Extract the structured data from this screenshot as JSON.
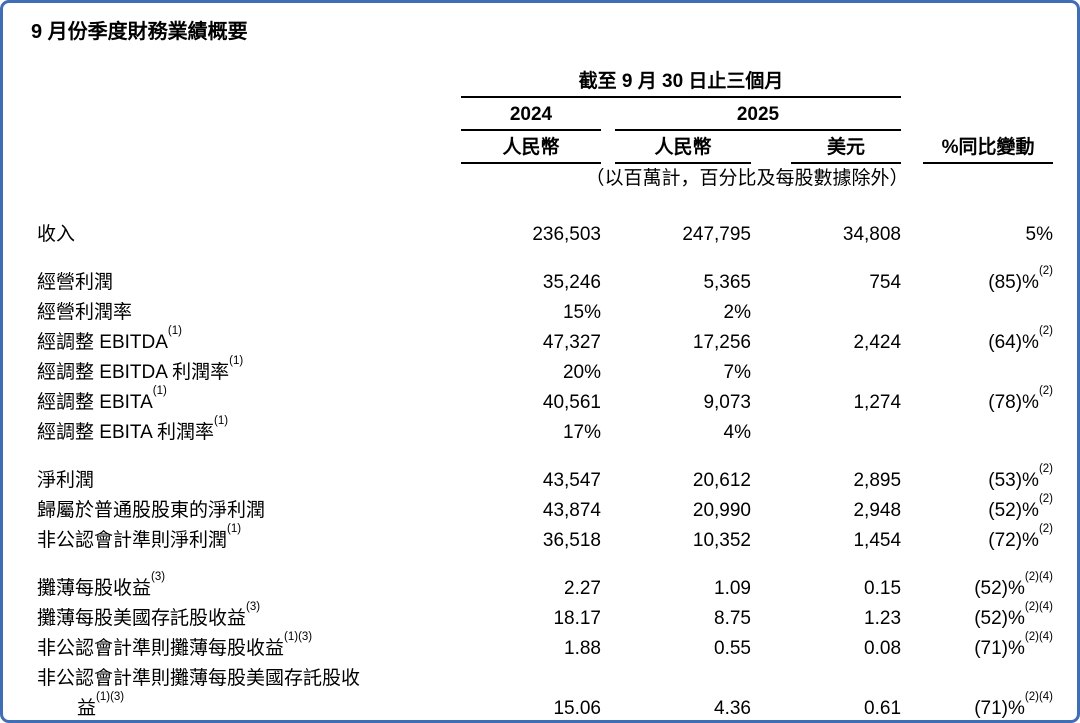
{
  "page": {
    "title": "9 月份季度財務業績概要"
  },
  "colors": {
    "frame_border": "#3f6eb5",
    "rule_line": "#000000",
    "text": "#000000",
    "background": "#ffffff"
  },
  "table": {
    "period_header": "截至 9 月 30 日止三個月",
    "column_groups": {
      "year_2024": "2024",
      "year_2025": "2025"
    },
    "columns": {
      "rmb_2024": "人民幣",
      "rmb_2025": "人民幣",
      "usd_2025": "美元",
      "yoy_change": "%同比變動"
    },
    "units_note": "（以百萬計，百分比及每股數據除外）",
    "rows": [
      {
        "label": "收入",
        "label_line2": "",
        "sup": "",
        "rmb_2024": "236,503",
        "rmb_2025": "247,795",
        "usd_2025": "34,808",
        "yoy": "5%",
        "yoy_sup": "",
        "gap_before": false
      },
      {
        "label": "經營利潤",
        "label_line2": "",
        "sup": "",
        "rmb_2024": "35,246",
        "rmb_2025": "5,365",
        "usd_2025": "754",
        "yoy": "(85)%",
        "yoy_sup": "(2)",
        "gap_before": true
      },
      {
        "label": "經營利潤率",
        "label_line2": "",
        "sup": "",
        "rmb_2024": "15%",
        "rmb_2025": "2%",
        "usd_2025": "",
        "yoy": "",
        "yoy_sup": "",
        "gap_before": false
      },
      {
        "label": "經調整 EBITDA",
        "label_line2": "",
        "sup": "(1)",
        "rmb_2024": "47,327",
        "rmb_2025": "17,256",
        "usd_2025": "2,424",
        "yoy": "(64)%",
        "yoy_sup": "(2)",
        "gap_before": false
      },
      {
        "label": "經調整 EBITDA 利潤率",
        "label_line2": "",
        "sup": "(1)",
        "rmb_2024": "20%",
        "rmb_2025": "7%",
        "usd_2025": "",
        "yoy": "",
        "yoy_sup": "",
        "gap_before": false
      },
      {
        "label": "經調整 EBITA",
        "label_line2": "",
        "sup": "(1)",
        "rmb_2024": "40,561",
        "rmb_2025": "9,073",
        "usd_2025": "1,274",
        "yoy": "(78)%",
        "yoy_sup": "(2)",
        "gap_before": false
      },
      {
        "label": "經調整 EBITA 利潤率",
        "label_line2": "",
        "sup": "(1)",
        "rmb_2024": "17%",
        "rmb_2025": "4%",
        "usd_2025": "",
        "yoy": "",
        "yoy_sup": "",
        "gap_before": false
      },
      {
        "label": "淨利潤",
        "label_line2": "",
        "sup": "",
        "rmb_2024": "43,547",
        "rmb_2025": "20,612",
        "usd_2025": "2,895",
        "yoy": "(53)%",
        "yoy_sup": "(2)",
        "gap_before": true
      },
      {
        "label": "歸屬於普通股股東的淨利潤",
        "label_line2": "",
        "sup": "",
        "rmb_2024": "43,874",
        "rmb_2025": "20,990",
        "usd_2025": "2,948",
        "yoy": "(52)%",
        "yoy_sup": "(2)",
        "gap_before": false
      },
      {
        "label": "非公認會計準則淨利潤",
        "label_line2": "",
        "sup": "(1)",
        "rmb_2024": "36,518",
        "rmb_2025": "10,352",
        "usd_2025": "1,454",
        "yoy": "(72)%",
        "yoy_sup": "(2)",
        "gap_before": false
      },
      {
        "label": "攤薄每股收益",
        "label_line2": "",
        "sup": "(3)",
        "rmb_2024": "2.27",
        "rmb_2025": "1.09",
        "usd_2025": "0.15",
        "yoy": "(52)%",
        "yoy_sup": "(2)(4)",
        "gap_before": true
      },
      {
        "label": "攤薄每股美國存託股收益",
        "label_line2": "",
        "sup": "(3)",
        "rmb_2024": "18.17",
        "rmb_2025": "8.75",
        "usd_2025": "1.23",
        "yoy": "(52)%",
        "yoy_sup": "(2)(4)",
        "gap_before": false
      },
      {
        "label": "非公認會計準則攤薄每股收益",
        "label_line2": "",
        "sup": "(1)(3)",
        "rmb_2024": "1.88",
        "rmb_2025": "0.55",
        "usd_2025": "0.08",
        "yoy": "(71)%",
        "yoy_sup": "(2)(4)",
        "gap_before": false
      },
      {
        "label": "非公認會計準則攤薄每股美國存託股收",
        "label_line2": "益",
        "sup": "(1)(3)",
        "rmb_2024": "15.06",
        "rmb_2025": "4.36",
        "usd_2025": "0.61",
        "yoy": "(71)%",
        "yoy_sup": "(2)(4)",
        "gap_before": false
      }
    ]
  }
}
